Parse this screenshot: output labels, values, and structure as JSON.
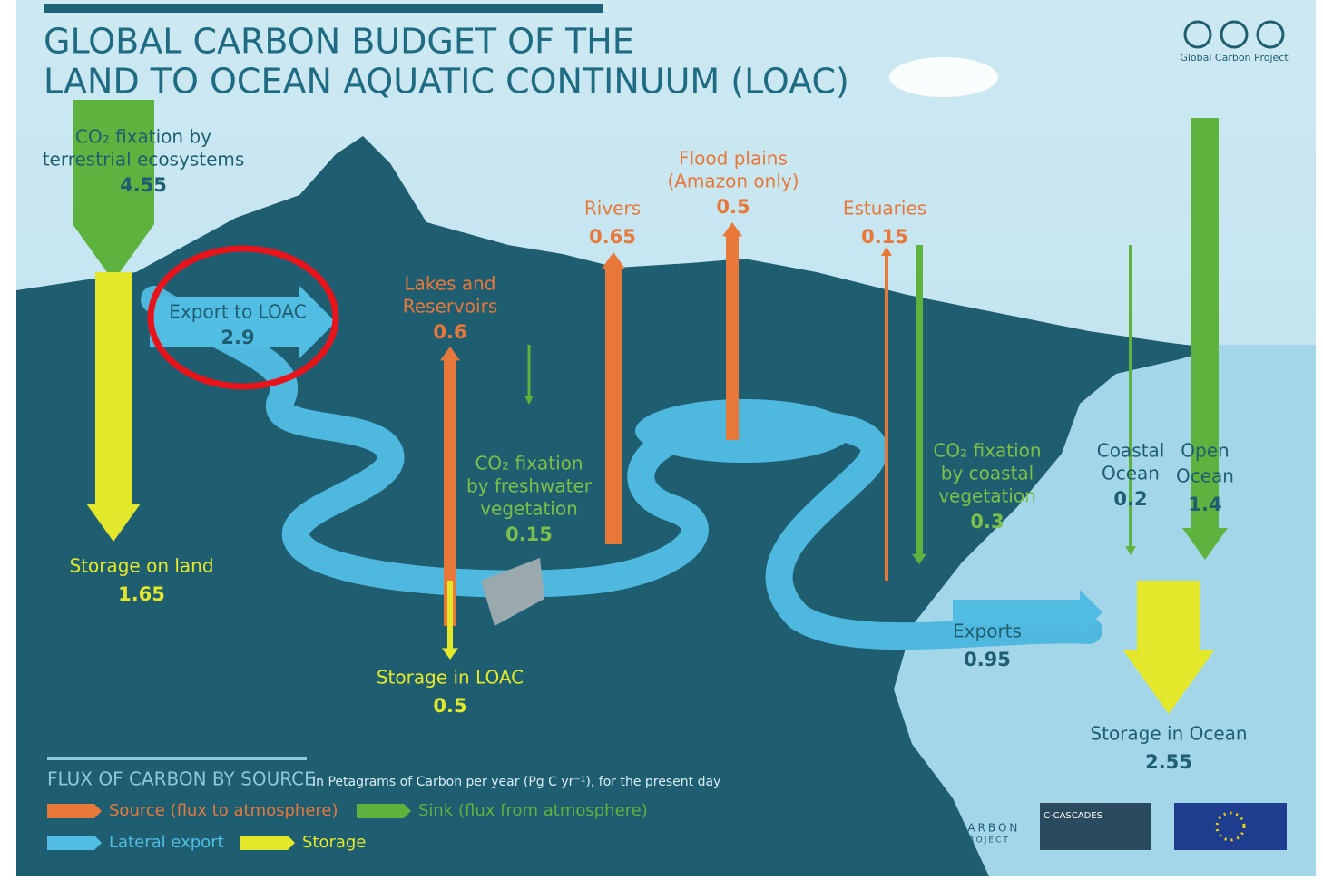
{
  "title": [
    "GLOBAL CARBON BUDGET OF THE",
    "LAND TO OCEAN AQUATIC CONTINUUM (LOAC)"
  ],
  "logo": "Global Carbon Project",
  "fluxes": [
    {
      "label": [
        "CO₂ fixation by",
        "terrestrial ecosystems"
      ],
      "value": 4.55
    },
    {
      "label": [
        "Export to LOAC"
      ],
      "value": 2.9
    },
    {
      "label": [
        "Storage on land"
      ],
      "value": 1.65
    },
    {
      "label": [
        "Lakes and",
        "Reservoirs"
      ],
      "value": 0.6
    },
    {
      "label": [
        "Rivers"
      ],
      "value": 0.65
    },
    {
      "label": [
        "Flood plains",
        "(Amazon only)"
      ],
      "value": 0.5
    },
    {
      "label": [
        "Estuaries"
      ],
      "value": 0.15
    },
    {
      "label": [
        "CO₂ fixation",
        "by freshwater",
        "vegetation"
      ],
      "value": 0.15
    },
    {
      "label": [
        "CO₂ fixation",
        "by coastal",
        "vegetation"
      ],
      "value": 0.3
    },
    {
      "label": [
        "Coastal",
        "Ocean"
      ],
      "value": 0.2
    },
    {
      "label": [
        "Open",
        "Ocean"
      ],
      "value": 1.4
    },
    {
      "label": [
        "Storage in LOAC"
      ],
      "value": 0.5
    },
    {
      "label": [
        "Exports"
      ],
      "value": 0.95
    },
    {
      "label": [
        "Storage in Ocean"
      ],
      "value": 2.55
    }
  ],
  "legend": {
    "title": "FLUX OF CARBON BY SOURCE",
    "subtitle": "In Petagrams of Carbon per year (Pg C yr⁻¹), for the present day",
    "items": [
      "Source (flux to atmosphere)",
      "Sink (flux from atmosphere)",
      "Lateral export",
      "Storage"
    ]
  },
  "partners": {
    "gcp": [
      "GLOBAL",
      "CARBON",
      "PROJECT"
    ],
    "ccascades": "C-CASCADES"
  }
}
